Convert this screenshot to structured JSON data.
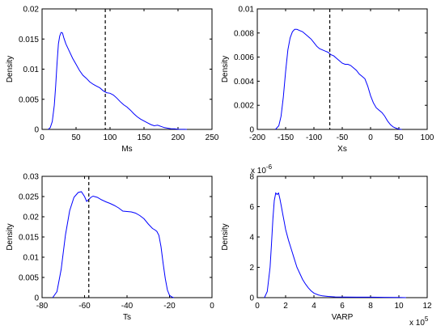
{
  "chart_data": [
    {
      "type": "line",
      "xlabel": "Ms",
      "ylabel": "Density",
      "xlim": [
        0,
        250
      ],
      "ylim": [
        0,
        0.02
      ],
      "xticks": [
        0,
        50,
        100,
        150,
        200,
        250
      ],
      "yticks": [
        0,
        0.005,
        0.01,
        0.015,
        0.02
      ],
      "xtick_labels": [
        "0",
        "50",
        "100",
        "150",
        "200",
        "250"
      ],
      "ytick_labels": [
        "0",
        "0.005",
        "0.01",
        "0.015",
        "0.02"
      ],
      "exponent_x": "",
      "exponent_y": "",
      "vline": 93,
      "line_color": "#0000ff",
      "grid": false,
      "series": [
        {
          "x": [
            9,
            12,
            15,
            18,
            20,
            22,
            24,
            26,
            28,
            30,
            32,
            35,
            40,
            45,
            50,
            55,
            60,
            65,
            70,
            75,
            80,
            85,
            90,
            95,
            100,
            105,
            110,
            115,
            120,
            125,
            130,
            135,
            140,
            145,
            150,
            155,
            160,
            165,
            170,
            175,
            180,
            185,
            190,
            195,
            200,
            205,
            210,
            213
          ],
          "y": [
            0,
            0.0003,
            0.0013,
            0.004,
            0.0072,
            0.011,
            0.0142,
            0.0155,
            0.0161,
            0.016,
            0.0152,
            0.0142,
            0.013,
            0.0118,
            0.0108,
            0.0098,
            0.009,
            0.0085,
            0.0079,
            0.0075,
            0.0072,
            0.0069,
            0.0064,
            0.0061,
            0.006,
            0.0057,
            0.0052,
            0.0046,
            0.0041,
            0.0037,
            0.0032,
            0.0026,
            0.0021,
            0.0017,
            0.0014,
            0.0011,
            0.0008,
            0.0006,
            0.0007,
            0.0005,
            0.0003,
            0.0002,
            0.0001,
            0.0001,
            4e-05,
            2e-05,
            1e-05,
            0
          ]
        }
      ]
    },
    {
      "type": "line",
      "xlabel": "Xs",
      "ylabel": "Density",
      "xlim": [
        -200,
        100
      ],
      "ylim": [
        0,
        0.01
      ],
      "xticks": [
        -200,
        -150,
        -100,
        -50,
        0,
        50,
        100
      ],
      "yticks": [
        0,
        0.002,
        0.004,
        0.006,
        0.008,
        0.01
      ],
      "xtick_labels": [
        "-200",
        "-150",
        "-100",
        "-50",
        "0",
        "50",
        "100"
      ],
      "ytick_labels": [
        "0",
        "0.002",
        "0.004",
        "0.006",
        "0.008",
        "0.01"
      ],
      "exponent_x": "",
      "exponent_y": "",
      "vline": -72,
      "line_color": "#0000ff",
      "grid": false,
      "series": [
        {
          "x": [
            -168,
            -162,
            -158,
            -154,
            -150,
            -146,
            -142,
            -138,
            -134,
            -130,
            -125,
            -120,
            -115,
            -110,
            -105,
            -100,
            -95,
            -90,
            -85,
            -80,
            -75,
            -70,
            -65,
            -60,
            -55,
            -50,
            -45,
            -40,
            -35,
            -30,
            -25,
            -20,
            -15,
            -10,
            -5,
            0,
            5,
            10,
            15,
            20,
            25,
            30,
            35,
            40,
            45,
            50,
            55
          ],
          "y": [
            0,
            0.0003,
            0.0011,
            0.0027,
            0.0048,
            0.0066,
            0.0076,
            0.0081,
            0.0083,
            0.0083,
            0.0082,
            0.0081,
            0.0079,
            0.0077,
            0.0075,
            0.0072,
            0.0069,
            0.0067,
            0.0066,
            0.0065,
            0.0064,
            0.0062,
            0.0061,
            0.0059,
            0.0057,
            0.0055,
            0.0054,
            0.0054,
            0.0053,
            0.0051,
            0.0049,
            0.0046,
            0.0044,
            0.0042,
            0.0036,
            0.0028,
            0.0022,
            0.0018,
            0.0016,
            0.0014,
            0.0011,
            0.0007,
            0.0004,
            0.0002,
            0.0001,
            3e-05,
            0
          ]
        }
      ]
    },
    {
      "type": "line",
      "xlabel": "Ts",
      "ylabel": "Density",
      "xlim": [
        -80,
        0
      ],
      "ylim": [
        0,
        0.03
      ],
      "xticks": [
        -80,
        -60,
        -40,
        -20,
        0
      ],
      "yticks": [
        0,
        0.005,
        0.01,
        0.015,
        0.02,
        0.025,
        0.03
      ],
      "xtick_labels": [
        "-80",
        "-60",
        "-40",
        "-20",
        "0"
      ],
      "ytick_labels": [
        "0",
        "0.005",
        "0.01",
        "0.015",
        "0.02",
        "0.025",
        "0.03"
      ],
      "exponent_x": "",
      "exponent_y": "",
      "vline": -58,
      "line_color": "#0000ff",
      "grid": false,
      "series": [
        {
          "x": [
            -75,
            -73,
            -71,
            -69,
            -67,
            -65,
            -63,
            -61.5,
            -60,
            -59,
            -58,
            -57,
            -56,
            -54,
            -52,
            -50,
            -48,
            -46,
            -44,
            -42,
            -40,
            -38,
            -36,
            -34,
            -32,
            -30,
            -28,
            -27,
            -26,
            -25,
            -24,
            -23,
            -22,
            -21,
            -20,
            -19,
            -18
          ],
          "y": [
            0,
            0.0015,
            0.007,
            0.0155,
            0.0215,
            0.0248,
            0.026,
            0.0262,
            0.025,
            0.0238,
            0.0243,
            0.0248,
            0.0251,
            0.0248,
            0.0242,
            0.0237,
            0.0233,
            0.0228,
            0.0222,
            0.0214,
            0.0213,
            0.0212,
            0.0209,
            0.0203,
            0.0195,
            0.0182,
            0.0171,
            0.0168,
            0.0164,
            0.0154,
            0.0126,
            0.0085,
            0.0047,
            0.0019,
            0.0006,
            0.0002,
            0
          ]
        }
      ]
    },
    {
      "type": "line",
      "xlabel": "VARP",
      "ylabel": "Density",
      "xlim": [
        0,
        12
      ],
      "ylim": [
        0,
        8
      ],
      "xticks": [
        0,
        2,
        4,
        6,
        8,
        10,
        12
      ],
      "yticks": [
        0,
        2,
        4,
        6,
        8
      ],
      "xtick_labels": [
        "0",
        "2",
        "4",
        "6",
        "8",
        "10",
        "12"
      ],
      "ytick_labels": [
        "0",
        "2",
        "4",
        "6",
        "8"
      ],
      "exponent_x": "x 10",
      "exponent_x_power": "5",
      "exponent_y": "x 10",
      "exponent_y_power": "-6",
      "vline": null,
      "line_color": "#0000ff",
      "grid": false,
      "series": [
        {
          "x": [
            0.5,
            0.7,
            0.9,
            1.0,
            1.1,
            1.2,
            1.3,
            1.4,
            1.5,
            1.6,
            1.7,
            1.8,
            1.9,
            2.0,
            2.2,
            2.4,
            2.6,
            2.8,
            3.0,
            3.2,
            3.4,
            3.6,
            3.8,
            4.0,
            4.3,
            4.6,
            5.0,
            5.5,
            6.0,
            7.0,
            8.0,
            9.0,
            10.0,
            10.5
          ],
          "y": [
            0,
            0.4,
            2.0,
            3.5,
            5.2,
            6.4,
            6.9,
            6.8,
            6.9,
            6.5,
            6.0,
            5.5,
            5.0,
            4.5,
            3.8,
            3.2,
            2.6,
            2.0,
            1.6,
            1.2,
            0.9,
            0.65,
            0.45,
            0.3,
            0.18,
            0.12,
            0.08,
            0.05,
            0.04,
            0.03,
            0.03,
            0.02,
            0.01,
            0
          ]
        }
      ]
    }
  ]
}
